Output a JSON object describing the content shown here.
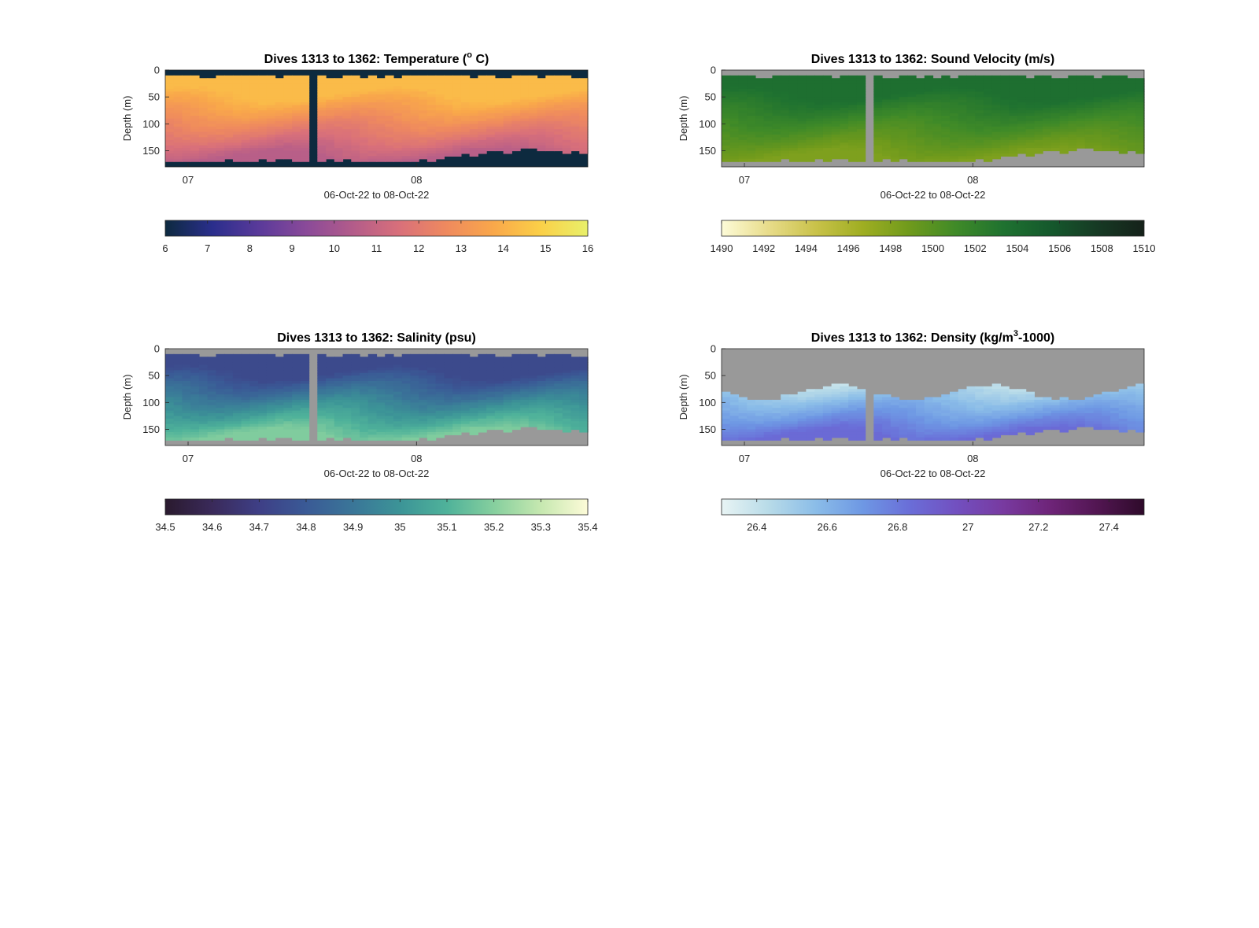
{
  "figure": {
    "date_range_label": "06-Oct-22 to 08-Oct-22",
    "nan_color": "#999999"
  },
  "chart_data": [
    {
      "type": "heatmap",
      "title_prefix": "Dives 1313 to 1362: Temperature (",
      "title_sup": "o",
      "title_suffix": " C)",
      "xlabel": "06-Oct-22 to 08-Oct-22",
      "ylabel": "Depth (m)",
      "xticks": [
        "07",
        "08"
      ],
      "yticks": [
        "0",
        "50",
        "100",
        "150"
      ],
      "ylim": [
        0,
        180
      ],
      "nan_color": "#0d2a3f",
      "colorbar": {
        "ticks": [
          "6",
          "7",
          "8",
          "9",
          "10",
          "11",
          "12",
          "13",
          "14",
          "15",
          "16"
        ],
        "range": [
          6,
          16
        ],
        "colormap": [
          "#0d2a3f",
          "#2a2e8c",
          "#5a3a9a",
          "#8a4a99",
          "#b35c8a",
          "#d9707a",
          "#ef8a5e",
          "#f9a84a",
          "#fbd048",
          "#e8f06a"
        ]
      },
      "profile": {
        "surface_value": 14.3,
        "bottom_value": 10.6,
        "mid_value": 13.0
      },
      "gap_index": 17,
      "columns": 50
    },
    {
      "type": "heatmap",
      "title_prefix": "Dives 1313 to 1362: Sound Velocity (m/s)",
      "title_sup": "",
      "title_suffix": "",
      "xlabel": "06-Oct-22 to 08-Oct-22",
      "ylabel": "Depth (m)",
      "xticks": [
        "07",
        "08"
      ],
      "yticks": [
        "0",
        "50",
        "100",
        "150"
      ],
      "ylim": [
        0,
        180
      ],
      "nan_color": "#999999",
      "colorbar": {
        "ticks": [
          "1490",
          "1492",
          "1494",
          "1496",
          "1498",
          "1500",
          "1502",
          "1504",
          "1506",
          "1508",
          "1510"
        ],
        "range": [
          1490,
          1510
        ],
        "colormap": [
          "#fdfbd8",
          "#e8dc8a",
          "#c9c24a",
          "#9fae22",
          "#6f9a1c",
          "#3f8a28",
          "#1f7230",
          "#15592d",
          "#163a24",
          "#15211a"
        ]
      },
      "profile": {
        "surface_value": 1503.6,
        "bottom_value": 1498.2,
        "mid_value": 1502.6
      },
      "gap_index": 17,
      "columns": 50
    },
    {
      "type": "heatmap",
      "title_prefix": "Dives 1313 to 1362: Salinity (psu)",
      "title_sup": "",
      "title_suffix": "",
      "xlabel": "06-Oct-22 to 08-Oct-22",
      "ylabel": "Depth (m)",
      "xticks": [
        "07",
        "08"
      ],
      "yticks": [
        "0",
        "50",
        "100",
        "150"
      ],
      "ylim": [
        0,
        180
      ],
      "nan_color": "#999999",
      "colorbar": {
        "ticks": [
          "34.5",
          "34.6",
          "34.7",
          "34.8",
          "34.9",
          "35",
          "35.1",
          "35.2",
          "35.3",
          "35.4"
        ],
        "range": [
          34.5,
          35.4
        ],
        "colormap": [
          "#2a1a2e",
          "#3a2a5a",
          "#3e3f86",
          "#3a5a96",
          "#3a7698",
          "#3c9497",
          "#4fb29a",
          "#86cf9e",
          "#c6e8b0",
          "#fdfbd8"
        ]
      },
      "profile": {
        "surface_value": 34.74,
        "bottom_value": 35.19,
        "mid_value": 34.96
      },
      "gap_index": 17,
      "columns": 50
    },
    {
      "type": "heatmap",
      "title_prefix": "Dives 1313 to 1362: Density (kg/m",
      "title_sup": "3",
      "title_suffix": "-1000)",
      "xlabel": "06-Oct-22 to 08-Oct-22",
      "ylabel": "Depth (m)",
      "xticks": [
        "07",
        "08"
      ],
      "yticks": [
        "0",
        "50",
        "100",
        "150"
      ],
      "ylim": [
        0,
        180
      ],
      "nan_color": "#999999",
      "colorbar": {
        "ticks": [
          "26.4",
          "26.6",
          "26.8",
          "27",
          "27.2",
          "27.4"
        ],
        "range": [
          26.3,
          27.5
        ],
        "colormap": [
          "#e8f4f4",
          "#b8dbe8",
          "#8bbde8",
          "#6e98e4",
          "#6a6ed8",
          "#7250c0",
          "#783aa0",
          "#6e2478",
          "#521652",
          "#2e0a2a"
        ]
      },
      "profile": {
        "surface_value": 26.35,
        "bottom_value": 26.85,
        "mid_value": 26.7
      },
      "gap_index": 17,
      "columns": 50
    }
  ]
}
